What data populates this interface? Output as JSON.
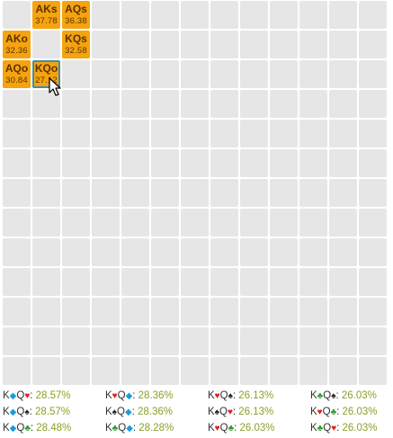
{
  "colors": {
    "empty_cell": "#e6e6e6",
    "hand_cell": "#f5a30f",
    "selected_border": "#3c8fa8",
    "percent_text": "#8aa028",
    "heart": "#e0201a",
    "diamond": "#1a9be0",
    "spade": "#222222",
    "club": "#2e9a2e"
  },
  "matrix": {
    "rows": 13,
    "cols": 13,
    "hands": [
      {
        "label": "AKs",
        "value": "37.78",
        "row": 0,
        "col": 1,
        "selected": false
      },
      {
        "label": "AQs",
        "value": "36.38",
        "row": 0,
        "col": 2,
        "selected": false
      },
      {
        "label": "AKo",
        "value": "32.36",
        "row": 1,
        "col": 0,
        "selected": false
      },
      {
        "label": "KQs",
        "value": "32.58",
        "row": 1,
        "col": 2,
        "selected": false
      },
      {
        "label": "AQo",
        "value": "30.84",
        "row": 2,
        "col": 0,
        "selected": false
      },
      {
        "label": "KQo",
        "value": "27.12",
        "row": 2,
        "col": 1,
        "selected": true
      }
    ]
  },
  "combos": [
    [
      {
        "c1": "K",
        "s1": "diamond",
        "c2": "Q",
        "s2": "heart",
        "pct": "28.57%"
      },
      {
        "c1": "K",
        "s1": "diamond",
        "c2": "Q",
        "s2": "spade",
        "pct": "28.57%"
      },
      {
        "c1": "K",
        "s1": "diamond",
        "c2": "Q",
        "s2": "club",
        "pct": "28.48%"
      }
    ],
    [
      {
        "c1": "K",
        "s1": "heart",
        "c2": "Q",
        "s2": "diamond",
        "pct": "28.36%"
      },
      {
        "c1": "K",
        "s1": "spade",
        "c2": "Q",
        "s2": "diamond",
        "pct": "28.36%"
      },
      {
        "c1": "K",
        "s1": "club",
        "c2": "Q",
        "s2": "diamond",
        "pct": "28.28%"
      }
    ],
    [
      {
        "c1": "K",
        "s1": "heart",
        "c2": "Q",
        "s2": "spade",
        "pct": "26.13%"
      },
      {
        "c1": "K",
        "s1": "spade",
        "c2": "Q",
        "s2": "heart",
        "pct": "26.13%"
      },
      {
        "c1": "K",
        "s1": "heart",
        "c2": "Q",
        "s2": "club",
        "pct": "26.03%"
      }
    ],
    [
      {
        "c1": "K",
        "s1": "club",
        "c2": "Q",
        "s2": "spade",
        "pct": "26.03%"
      },
      {
        "c1": "K",
        "s1": "heart",
        "c2": "Q",
        "s2": "club",
        "pct": "26.03%"
      },
      {
        "c1": "K",
        "s1": "club",
        "c2": "Q",
        "s2": "heart",
        "pct": "26.03%"
      }
    ]
  ]
}
